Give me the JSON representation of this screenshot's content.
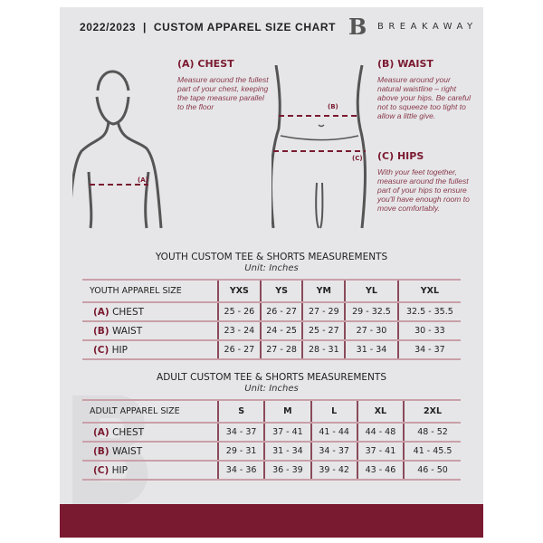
{
  "header": {
    "title": "2022/2023  |  CUSTOM APPAREL SIZE CHART",
    "brand": "BREAKAWAY",
    "logo_letter": "B"
  },
  "colors": {
    "accent": "#7a1a30",
    "background": "#e6e6e8"
  },
  "guides": {
    "chest": {
      "title": "(A) CHEST",
      "text": "Measure around the fullest part of your chest, keeping the tape measure parallel to the floor",
      "marker": "(A)"
    },
    "waist": {
      "title": "(B) WAIST",
      "text": "Measure around your natural waistline – right above your hips. Be careful not to squeeze too tight to allow a little give.",
      "marker": "(B)"
    },
    "hips": {
      "title": "(C) HIPS",
      "text": "With your feet together, measure around the fullest part of your hips to ensure you'll have enough room to move comfortably.",
      "marker": "(C)"
    }
  },
  "youth": {
    "title": "YOUTH CUSTOM TEE & SHORTS MEASUREMENTS",
    "unit": "Unit: Inches",
    "header_label": "YOUTH APPAREL SIZE",
    "sizes": [
      "YXS",
      "YS",
      "YM",
      "YL",
      "YXL"
    ],
    "rows": [
      {
        "letter": "(A)",
        "name": "CHEST",
        "values": [
          "25 - 26",
          "26 - 27",
          "27 - 29",
          "29 - 32.5",
          "32.5 - 35.5"
        ]
      },
      {
        "letter": "(B)",
        "name": "WAIST",
        "values": [
          "23 - 24",
          "24 - 25",
          "25 - 27",
          "27 - 30",
          "30 - 33"
        ]
      },
      {
        "letter": "(C)",
        "name": "HIP",
        "values": [
          "26 - 27",
          "27 - 28",
          "28 - 31",
          "31 - 34",
          "34 - 37"
        ]
      }
    ]
  },
  "adult": {
    "title": "ADULT CUSTOM TEE & SHORTS MEASUREMENTS",
    "unit": "Unit: Inches",
    "header_label": "ADULT APPAREL SIZE",
    "sizes": [
      "S",
      "M",
      "L",
      "XL",
      "2XL"
    ],
    "rows": [
      {
        "letter": "(A)",
        "name": "CHEST",
        "values": [
          "34 - 37",
          "37 - 41",
          "41 - 44",
          "44 - 48",
          "48 - 52"
        ]
      },
      {
        "letter": "(B)",
        "name": "WAIST",
        "values": [
          "29 - 31",
          "31 - 34",
          "34 - 37",
          "37 - 41",
          "41 - 45.5"
        ]
      },
      {
        "letter": "(C)",
        "name": "HIP",
        "values": [
          "34 - 36",
          "36 - 39",
          "39 - 42",
          "43 - 46",
          "46 - 50"
        ]
      }
    ]
  }
}
